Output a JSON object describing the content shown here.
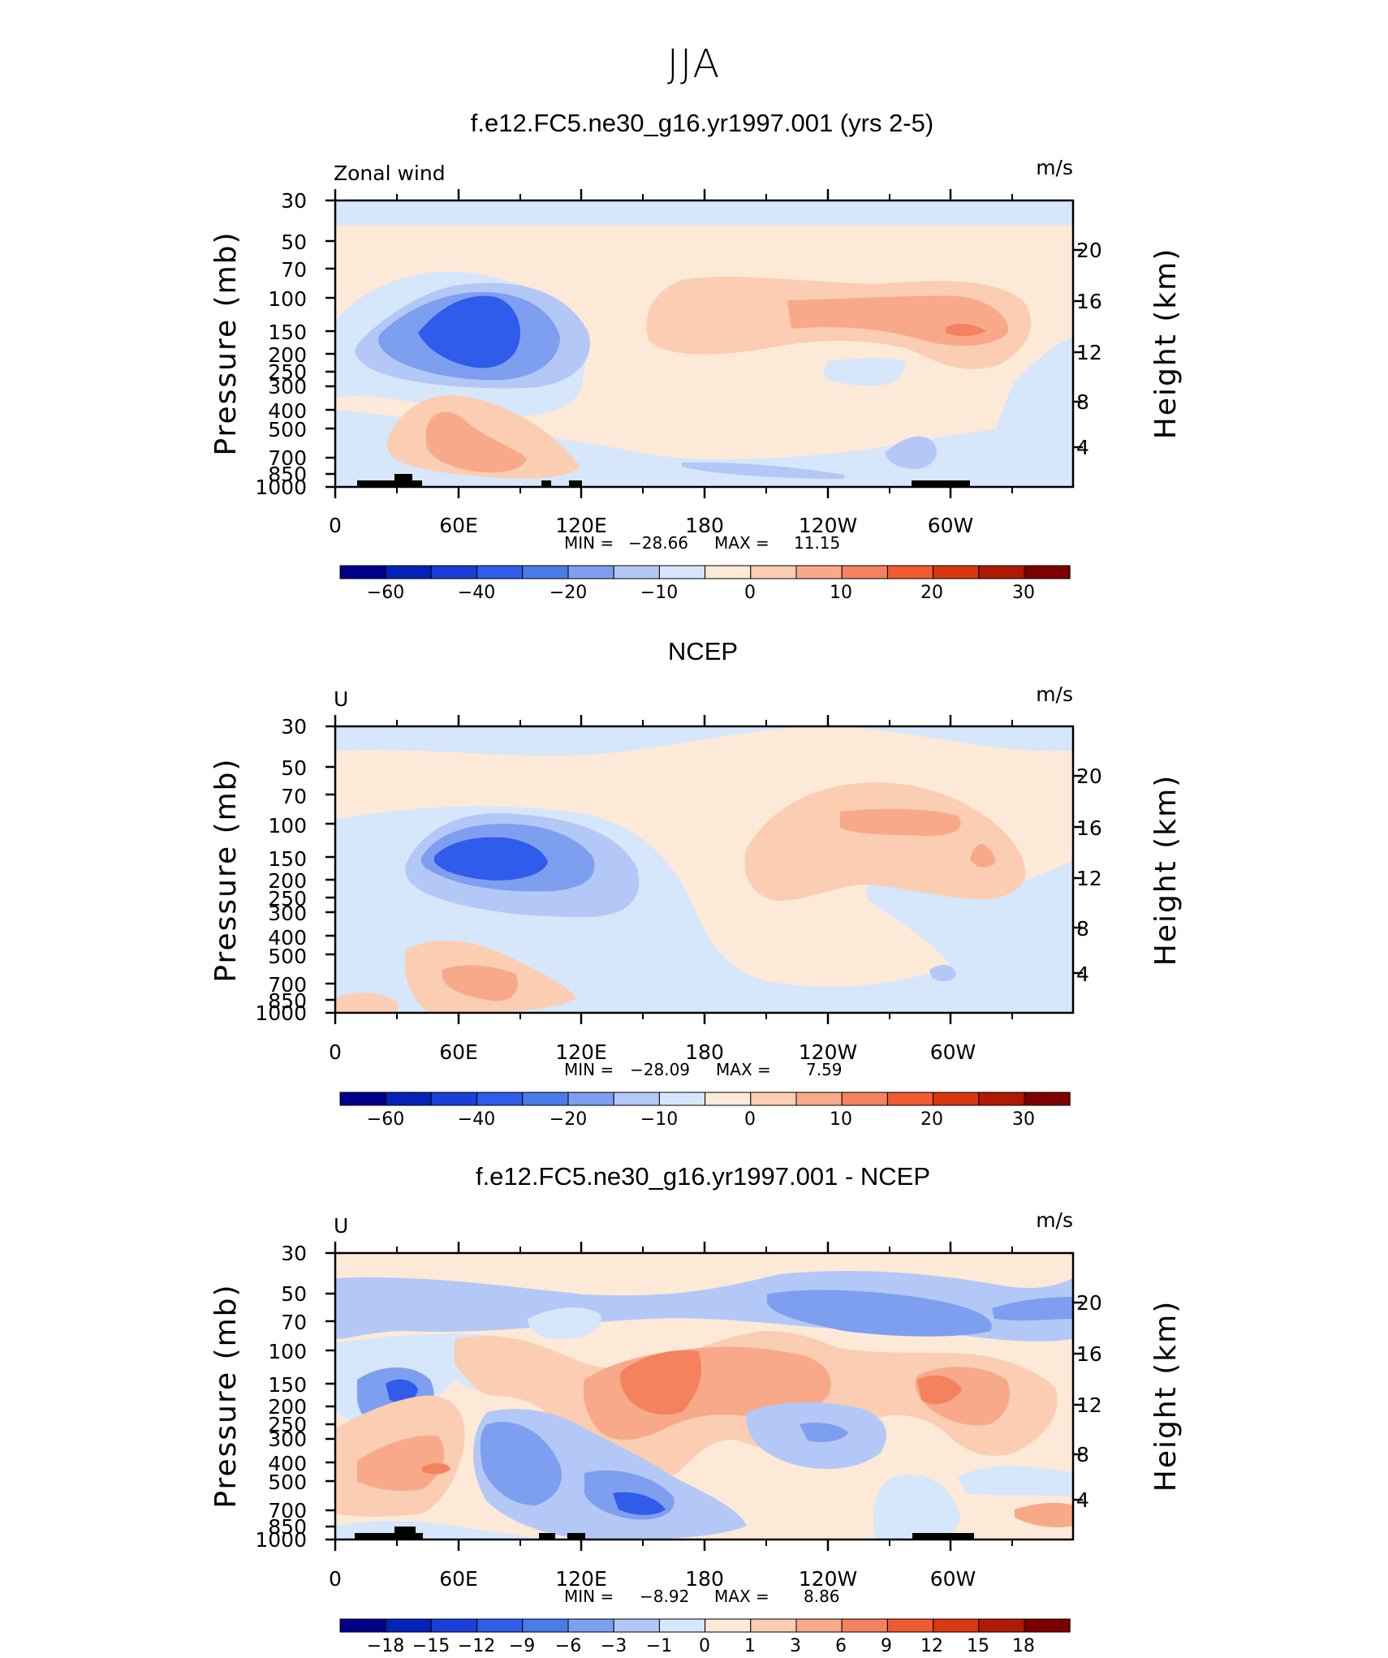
{
  "main_title": "JJA",
  "colors": {
    "blues": [
      "#00008b",
      "#0522b8",
      "#1a3fd8",
      "#2f5ceb",
      "#4a7ce8",
      "#7e9ef0",
      "#b3c8f6",
      "#d6e6fb"
    ],
    "reds": [
      "#fde9d7",
      "#fbcdb3",
      "#f8a98a",
      "#f4825f",
      "#f05a30",
      "#d8380f",
      "#b01a05",
      "#7c0000"
    ]
  },
  "chart_data": [
    {
      "type": "heatmap",
      "title": "f.e12.FC5.ne30_g16.yr1997.001 (yrs 2-5)",
      "field_label": "Zonal wind",
      "units": "m/s",
      "ylabel": "Pressure (mb)",
      "ylabel_right": "Height (km)",
      "x_ticks": [
        "0",
        "60E",
        "120E",
        "180",
        "120W",
        "60W"
      ],
      "y_ticks": [
        "30",
        "50",
        "70",
        "100",
        "150",
        "200",
        "250",
        "300",
        "400",
        "500",
        "700",
        "850",
        "1000"
      ],
      "y2_ticks": [
        "20",
        "16",
        "12",
        "8",
        "4"
      ],
      "ylim": [
        1000,
        30
      ],
      "min_label": "MIN =",
      "min_value": "−28.66",
      "max_label": "MAX =",
      "max_value": "11.15",
      "colorbar_labels": [
        "−60",
        "−40",
        "−20",
        "−10",
        "0",
        "10",
        "20",
        "30"
      ]
    },
    {
      "type": "heatmap",
      "title": "NCEP",
      "field_label": "U",
      "units": "m/s",
      "ylabel": "Pressure (mb)",
      "ylabel_right": "Height (km)",
      "x_ticks": [
        "0",
        "60E",
        "120E",
        "180",
        "120W",
        "60W"
      ],
      "y_ticks": [
        "30",
        "50",
        "70",
        "100",
        "150",
        "200",
        "250",
        "300",
        "400",
        "500",
        "700",
        "850",
        "1000"
      ],
      "y2_ticks": [
        "20",
        "16",
        "12",
        "8",
        "4"
      ],
      "ylim": [
        1000,
        30
      ],
      "min_label": "MIN =",
      "min_value": "−28.09",
      "max_label": "MAX =",
      "max_value": "7.59",
      "colorbar_labels": [
        "−60",
        "−40",
        "−20",
        "−10",
        "0",
        "10",
        "20",
        "30"
      ]
    },
    {
      "type": "heatmap",
      "title": "f.e12.FC5.ne30_g16.yr1997.001 - NCEP",
      "field_label": "U",
      "units": "m/s",
      "ylabel": "Pressure (mb)",
      "ylabel_right": "Height (km)",
      "x_ticks": [
        "0",
        "60E",
        "120E",
        "180",
        "120W",
        "60W"
      ],
      "y_ticks": [
        "30",
        "50",
        "70",
        "100",
        "150",
        "200",
        "250",
        "300",
        "400",
        "500",
        "700",
        "850",
        "1000"
      ],
      "y2_ticks": [
        "20",
        "16",
        "12",
        "8",
        "4"
      ],
      "ylim": [
        1000,
        30
      ],
      "min_label": "MIN =",
      "min_value": "−8.92",
      "max_label": "MAX =",
      "max_value": "8.86",
      "colorbar_labels": [
        "−18",
        "−15",
        "−12",
        "−9",
        "−6",
        "−3",
        "−1",
        "0",
        "1",
        "3",
        "6",
        "9",
        "12",
        "15",
        "18"
      ]
    }
  ]
}
